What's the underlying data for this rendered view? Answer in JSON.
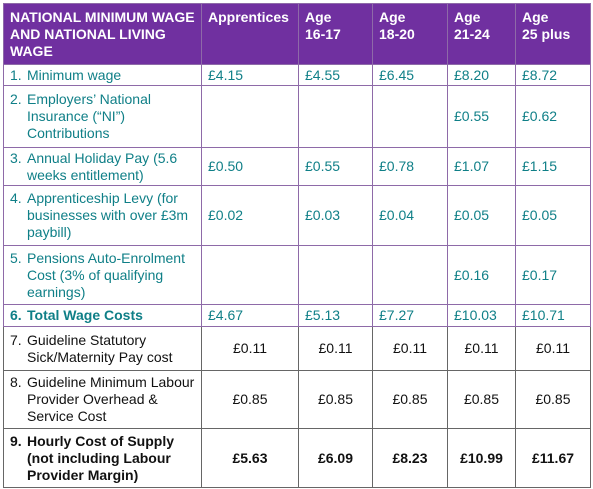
{
  "header": {
    "title": "NATIONAL MINIMUM WAGE AND NATIONAL LIVING WAGE",
    "columns": [
      "Apprentices",
      "Age\n16-17",
      "Age\n18-20",
      "Age\n21-24",
      "Age\n25 plus"
    ]
  },
  "table": {
    "rows": [
      {
        "num": "1.",
        "label": "Minimum wage",
        "values": [
          "£4.15",
          "£4.55",
          "£6.45",
          "£8.20",
          "£8.72"
        ]
      },
      {
        "num": "2.",
        "label": "Employers’ National Insurance (“NI”) Contributions",
        "values": [
          null,
          null,
          null,
          "£0.55",
          "£0.62"
        ]
      },
      {
        "num": "3.",
        "label": "Annual Holiday Pay (5.6 weeks entitlement)",
        "values": [
          "£0.50",
          "£0.55",
          "£0.78",
          "£1.07",
          "£1.15"
        ]
      },
      {
        "num": "4.",
        "label": "Apprenticeship Levy (for businesses with over £3m paybill)",
        "values": [
          "£0.02",
          "£0.03",
          "£0.04",
          "£0.05",
          "£0.05"
        ]
      },
      {
        "num": "5.",
        "label": "Pensions Auto-Enrolment Cost (3% of qualifying earnings)",
        "values": [
          null,
          null,
          null,
          "£0.16",
          "£0.17"
        ]
      },
      {
        "num": "6.",
        "label": "Total Wage Costs",
        "values": [
          "£4.67",
          "£5.13",
          "£7.27",
          "£10.03",
          "£10.71"
        ]
      },
      {
        "num": "7.",
        "label": "Guideline Statutory Sick/Maternity Pay cost",
        "values": [
          "£0.11",
          "£0.11",
          "£0.11",
          "£0.11",
          "£0.11"
        ]
      },
      {
        "num": "8.",
        "label": "Guideline Minimum Labour Provider Overhead & Service Cost",
        "values": [
          "£0.85",
          "£0.85",
          "£0.85",
          "£0.85",
          "£0.85"
        ]
      },
      {
        "num": "9.",
        "label": "Hourly Cost of Supply (not including Labour Provider Margin)",
        "values": [
          "£5.63",
          "£6.09",
          "£8.23",
          "£10.99",
          "£11.67"
        ]
      }
    ]
  }
}
